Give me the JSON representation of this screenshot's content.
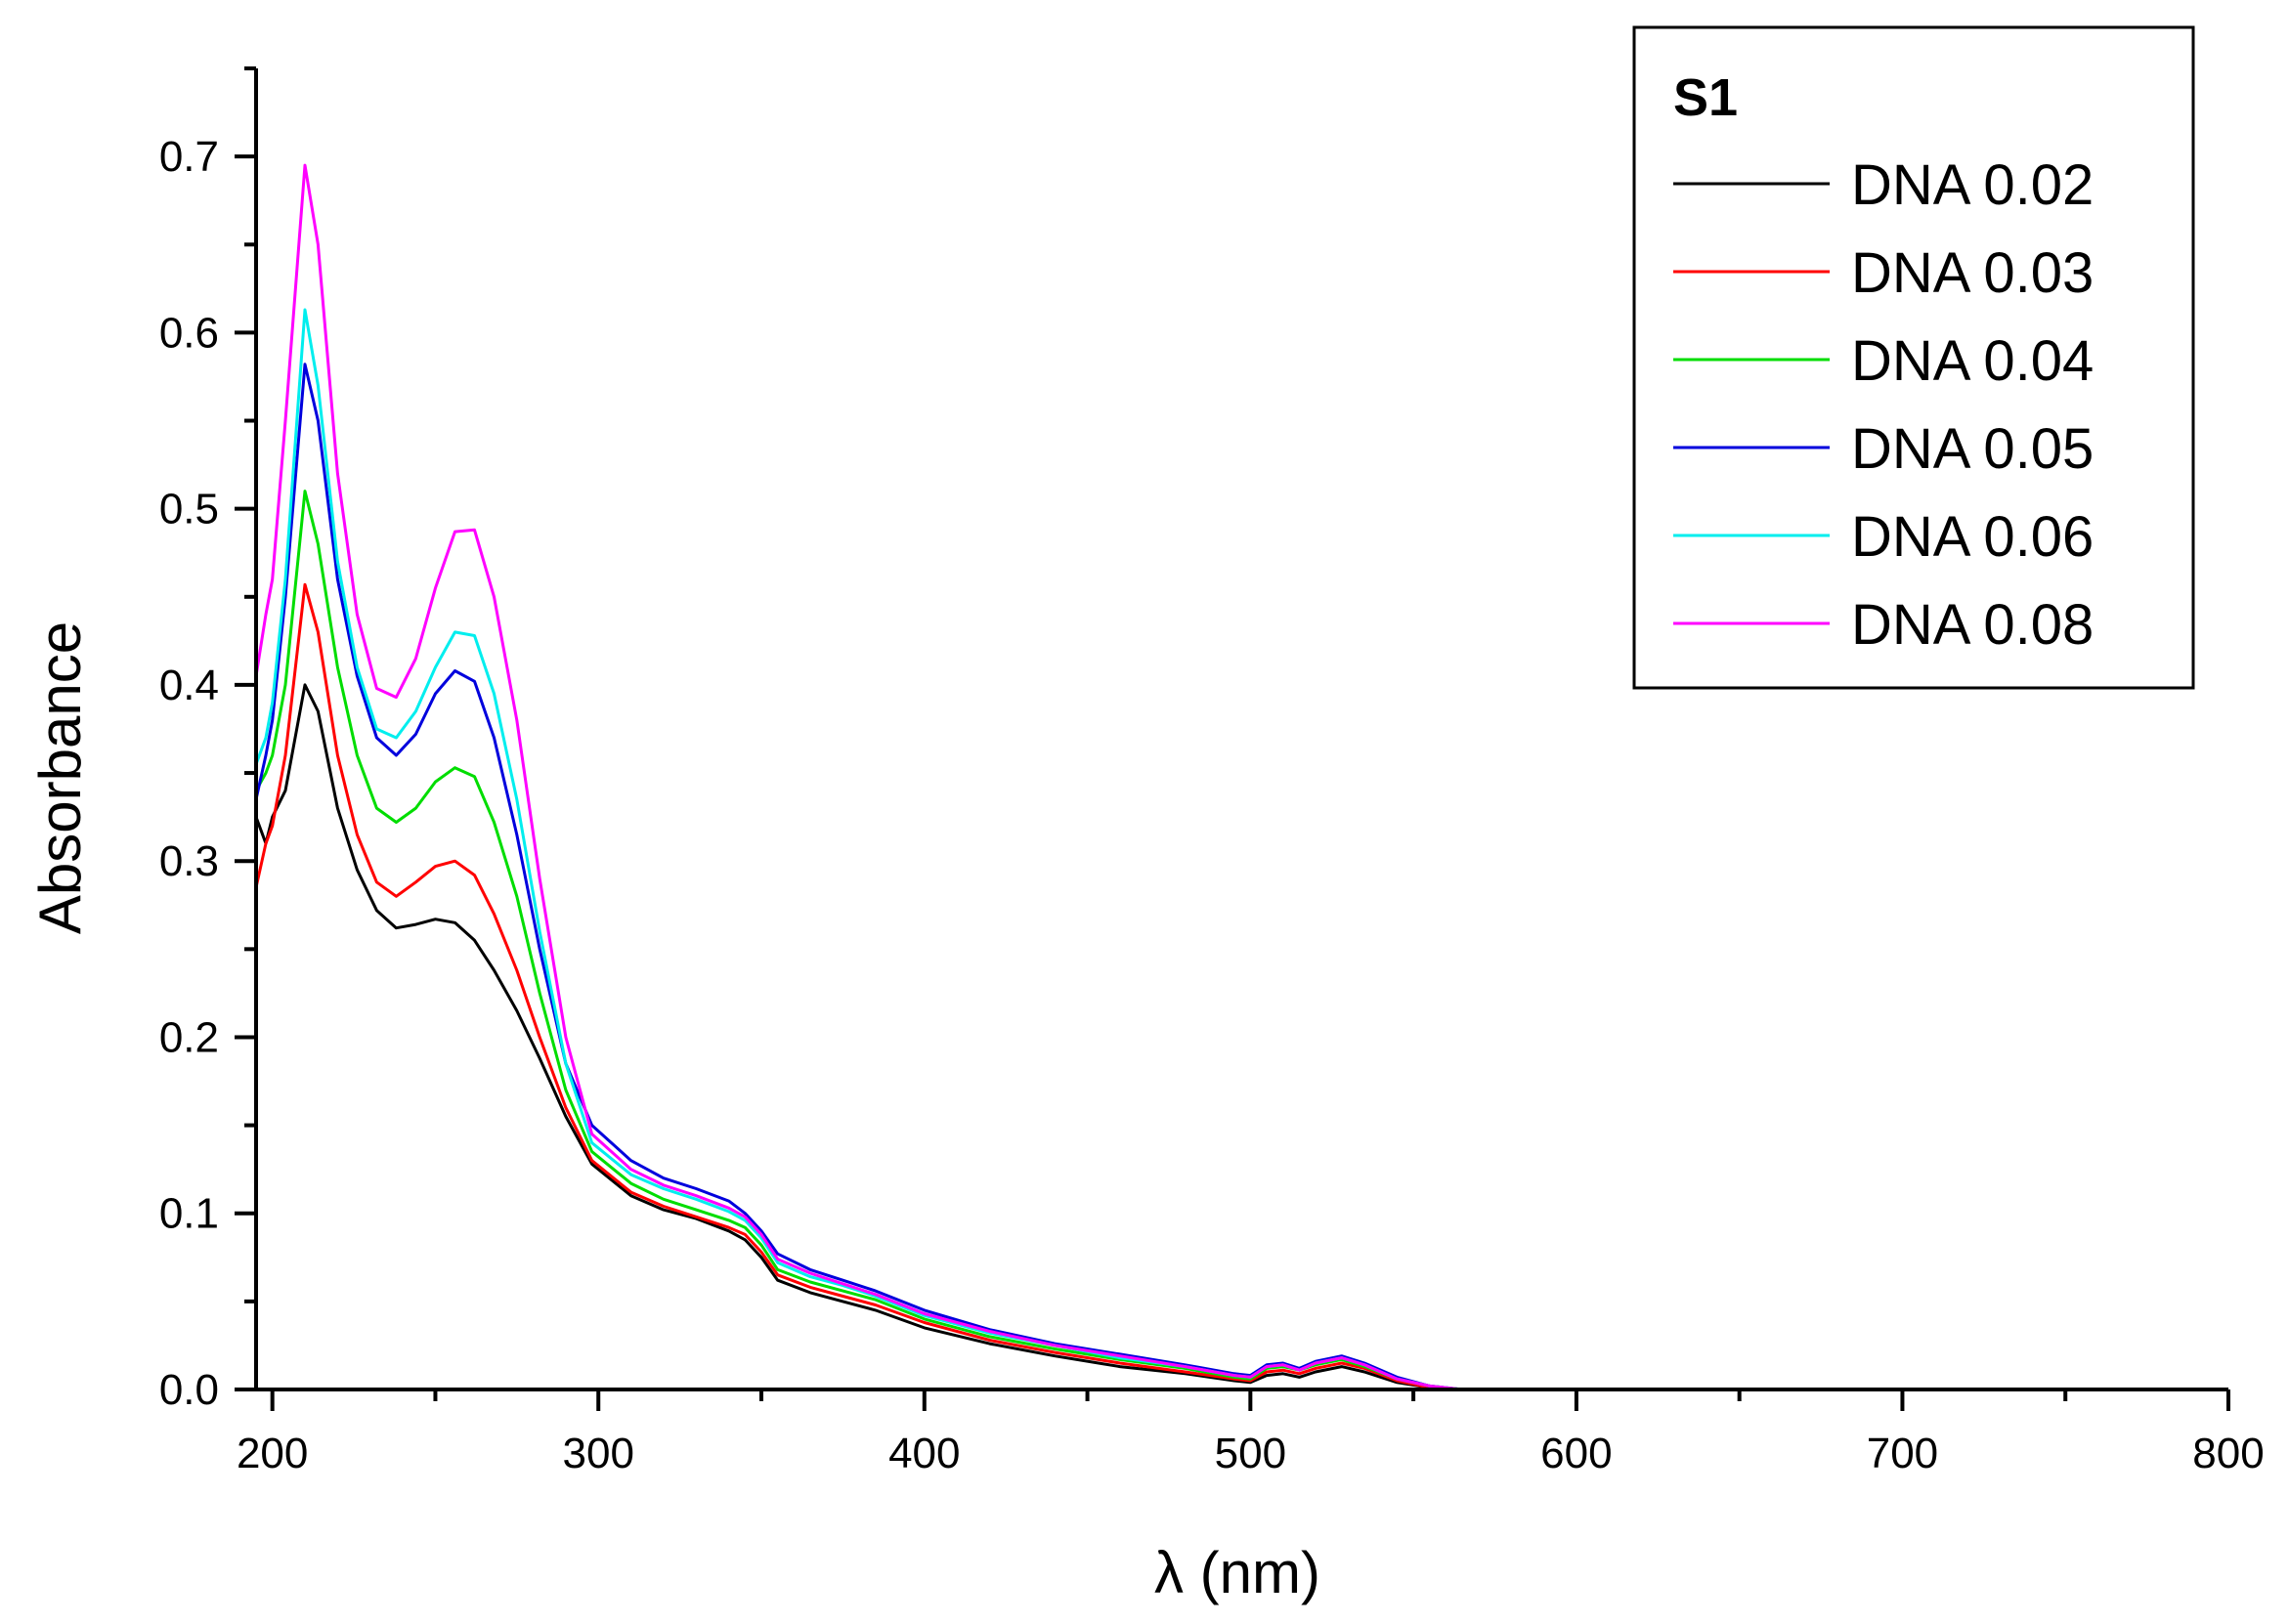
{
  "chart_data": {
    "type": "line",
    "title": "",
    "xlabel": "λ (nm)",
    "ylabel": "Absorbance",
    "xlim": [
      195,
      800
    ],
    "ylim": [
      0.0,
      0.75
    ],
    "xticks": [
      200,
      300,
      400,
      500,
      600,
      700,
      800
    ],
    "xtick_labels": [
      "200",
      "300",
      "400",
      "500",
      "600",
      "700",
      "800"
    ],
    "yticks": [
      0.0,
      0.1,
      0.2,
      0.3,
      0.4,
      0.5,
      0.6,
      0.7
    ],
    "ytick_labels": [
      "0.0",
      "0.1",
      "0.2",
      "0.3",
      "0.4",
      "0.5",
      "0.6",
      "0.7"
    ],
    "grid": false,
    "legend": {
      "title": "S1",
      "position": "top-right"
    },
    "series": [
      {
        "name": "DNA 0.02",
        "color": "#000000",
        "x": [
          195,
          198,
          200,
          204,
          210,
          214,
          220,
          226,
          232,
          238,
          244,
          250,
          256,
          262,
          268,
          275,
          282,
          290,
          298,
          310,
          320,
          330,
          340,
          345,
          350,
          355,
          365,
          375,
          385,
          400,
          420,
          440,
          460,
          480,
          495,
          500,
          505,
          510,
          515,
          520,
          528,
          535,
          545,
          555,
          565,
          600,
          700,
          800
        ],
        "y": [
          0.325,
          0.31,
          0.325,
          0.34,
          0.4,
          0.385,
          0.33,
          0.295,
          0.272,
          0.262,
          0.264,
          0.267,
          0.265,
          0.255,
          0.238,
          0.215,
          0.188,
          0.155,
          0.128,
          0.11,
          0.102,
          0.097,
          0.09,
          0.085,
          0.075,
          0.062,
          0.055,
          0.05,
          0.045,
          0.035,
          0.026,
          0.019,
          0.013,
          0.009,
          0.005,
          0.004,
          0.008,
          0.009,
          0.007,
          0.01,
          0.013,
          0.01,
          0.004,
          0.001,
          0.0,
          0.0,
          0.0,
          0.0
        ]
      },
      {
        "name": "DNA 0.03",
        "color": "#ff0000",
        "x": [
          195,
          198,
          200,
          204,
          210,
          214,
          220,
          226,
          232,
          238,
          244,
          250,
          256,
          262,
          268,
          275,
          282,
          290,
          298,
          310,
          320,
          330,
          340,
          345,
          350,
          355,
          365,
          375,
          385,
          400,
          420,
          440,
          460,
          480,
          495,
          500,
          505,
          510,
          515,
          520,
          528,
          535,
          545,
          555,
          565,
          600,
          700,
          800
        ],
        "y": [
          0.285,
          0.31,
          0.32,
          0.36,
          0.457,
          0.43,
          0.36,
          0.315,
          0.288,
          0.28,
          0.288,
          0.297,
          0.3,
          0.292,
          0.27,
          0.238,
          0.2,
          0.16,
          0.13,
          0.112,
          0.104,
          0.098,
          0.092,
          0.088,
          0.078,
          0.065,
          0.058,
          0.053,
          0.048,
          0.038,
          0.028,
          0.021,
          0.015,
          0.01,
          0.006,
          0.005,
          0.01,
          0.011,
          0.009,
          0.012,
          0.015,
          0.012,
          0.005,
          0.001,
          0.0,
          0.0,
          0.0,
          0.0
        ]
      },
      {
        "name": "DNA 0.04",
        "color": "#00dd00",
        "x": [
          195,
          198,
          200,
          204,
          210,
          214,
          220,
          226,
          232,
          238,
          244,
          250,
          256,
          262,
          268,
          275,
          282,
          290,
          298,
          310,
          320,
          330,
          340,
          345,
          350,
          355,
          365,
          375,
          385,
          400,
          420,
          440,
          460,
          480,
          495,
          500,
          505,
          510,
          515,
          520,
          528,
          535,
          545,
          555,
          565,
          600,
          700,
          800
        ],
        "y": [
          0.34,
          0.35,
          0.36,
          0.4,
          0.51,
          0.48,
          0.41,
          0.36,
          0.33,
          0.322,
          0.33,
          0.345,
          0.353,
          0.348,
          0.322,
          0.28,
          0.225,
          0.17,
          0.135,
          0.117,
          0.108,
          0.102,
          0.096,
          0.092,
          0.082,
          0.068,
          0.061,
          0.056,
          0.051,
          0.04,
          0.03,
          0.023,
          0.017,
          0.012,
          0.007,
          0.006,
          0.012,
          0.013,
          0.011,
          0.014,
          0.017,
          0.013,
          0.006,
          0.002,
          0.0,
          0.0,
          0.0,
          0.0
        ]
      },
      {
        "name": "DNA 0.05",
        "color": "#0000dd",
        "x": [
          195,
          198,
          200,
          204,
          210,
          214,
          220,
          226,
          232,
          238,
          244,
          250,
          256,
          262,
          268,
          275,
          282,
          290,
          298,
          310,
          320,
          330,
          340,
          345,
          350,
          355,
          365,
          375,
          385,
          400,
          420,
          440,
          460,
          480,
          495,
          500,
          505,
          510,
          515,
          520,
          528,
          535,
          545,
          555,
          565,
          600,
          700,
          800
        ],
        "y": [
          0.335,
          0.36,
          0.38,
          0.45,
          0.582,
          0.55,
          0.46,
          0.405,
          0.37,
          0.36,
          0.372,
          0.395,
          0.408,
          0.402,
          0.37,
          0.315,
          0.25,
          0.185,
          0.15,
          0.13,
          0.12,
          0.114,
          0.107,
          0.1,
          0.09,
          0.077,
          0.068,
          0.062,
          0.056,
          0.045,
          0.034,
          0.026,
          0.02,
          0.014,
          0.009,
          0.008,
          0.014,
          0.015,
          0.012,
          0.016,
          0.019,
          0.015,
          0.007,
          0.002,
          0.0,
          0.0,
          0.0,
          0.0
        ]
      },
      {
        "name": "DNA 0.06",
        "color": "#00eeee",
        "x": [
          195,
          198,
          200,
          204,
          210,
          214,
          220,
          226,
          232,
          238,
          244,
          250,
          256,
          262,
          268,
          275,
          282,
          290,
          298,
          310,
          320,
          330,
          340,
          345,
          350,
          355,
          365,
          375,
          385,
          400,
          420,
          440,
          460,
          480,
          495,
          500,
          505,
          510,
          515,
          520,
          528,
          535,
          545,
          555,
          565,
          600,
          700,
          800
        ],
        "y": [
          0.355,
          0.37,
          0.39,
          0.46,
          0.613,
          0.57,
          0.47,
          0.41,
          0.375,
          0.37,
          0.385,
          0.41,
          0.43,
          0.428,
          0.395,
          0.335,
          0.26,
          0.185,
          0.14,
          0.122,
          0.114,
          0.108,
          0.101,
          0.096,
          0.086,
          0.072,
          0.064,
          0.059,
          0.053,
          0.042,
          0.032,
          0.025,
          0.018,
          0.013,
          0.008,
          0.007,
          0.013,
          0.014,
          0.011,
          0.015,
          0.018,
          0.014,
          0.006,
          0.002,
          0.0,
          0.0,
          0.0,
          0.0
        ]
      },
      {
        "name": "DNA 0.08",
        "color": "#ff00ff",
        "x": [
          195,
          198,
          200,
          204,
          210,
          214,
          220,
          226,
          232,
          238,
          244,
          250,
          256,
          262,
          268,
          275,
          282,
          290,
          298,
          310,
          320,
          330,
          340,
          345,
          350,
          355,
          365,
          375,
          385,
          400,
          420,
          440,
          460,
          480,
          495,
          500,
          505,
          510,
          515,
          520,
          528,
          535,
          545,
          555,
          565,
          600,
          700,
          800
        ],
        "y": [
          0.405,
          0.44,
          0.46,
          0.55,
          0.695,
          0.65,
          0.52,
          0.44,
          0.398,
          0.393,
          0.415,
          0.455,
          0.487,
          0.488,
          0.45,
          0.38,
          0.29,
          0.2,
          0.145,
          0.125,
          0.116,
          0.11,
          0.103,
          0.098,
          0.088,
          0.074,
          0.066,
          0.06,
          0.054,
          0.043,
          0.033,
          0.025,
          0.019,
          0.013,
          0.008,
          0.007,
          0.013,
          0.014,
          0.011,
          0.015,
          0.018,
          0.014,
          0.006,
          0.002,
          0.0,
          0.0,
          0.0,
          0.0
        ]
      }
    ]
  }
}
